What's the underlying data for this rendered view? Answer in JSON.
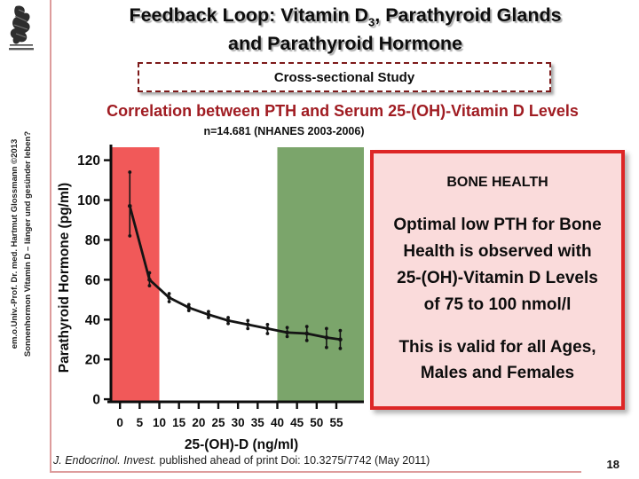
{
  "slide": {
    "page_number": "18",
    "sidebar_line1": "em.o.Univ.-Prof. Dr. med. Hartmut Glossmann ©2013",
    "sidebar_line2": "Sonnenhormon Vitamin D – länger und gesünder leben?",
    "logo_icon": "engraving-crest-logo"
  },
  "header": {
    "title_line1_pre": "Feedback Loop: Vitamin D",
    "title_subscript": "3",
    "title_line1_post": ", Parathyroid Glands",
    "title_line2": "and Parathyroid Hormone",
    "study_box_label": "Cross-sectional Study"
  },
  "section": {
    "heading": "Correlation between PTH and Serum 25-(OH)-Vitamin D Levels",
    "subheading": "n=14.681 (NHANES 2003-2006)"
  },
  "chart_data": {
    "type": "line",
    "title": "",
    "xlabel": "25-(OH)-D (ng/ml)",
    "ylabel": "Parathyroid Hormone (pg/ml)",
    "xlim": [
      -2.3,
      62
    ],
    "ylim": [
      -1.3,
      126.5
    ],
    "x_ticks": [
      0,
      5,
      10,
      15,
      20,
      25,
      30,
      35,
      40,
      45,
      50,
      55
    ],
    "y_ticks": [
      0,
      20,
      40,
      60,
      80,
      100,
      120
    ],
    "grid": false,
    "legend": null,
    "series": [
      {
        "name": "mean PTH with error bars",
        "x": [
          2.5,
          7.5,
          12.5,
          17.5,
          22.5,
          27.5,
          32.5,
          37.5,
          42.5,
          47.5,
          52.5,
          56
        ],
        "y": [
          97,
          60,
          51,
          46,
          42.5,
          39.5,
          37.5,
          35.5,
          33.5,
          33,
          31,
          30
        ],
        "err_low": [
          82,
          57,
          49,
          44.5,
          41,
          38,
          35.5,
          33,
          31.5,
          29.5,
          26,
          25.5
        ],
        "err_high": [
          114,
          63.5,
          53,
          47.5,
          44,
          41,
          39.5,
          37.5,
          36,
          36.5,
          35.5,
          34.5
        ]
      }
    ],
    "bands": [
      {
        "name": "red-highlight-band",
        "x0": -2.3,
        "x1": 10,
        "color": "#f15959"
      },
      {
        "name": "green-highlight-band",
        "x0": 40,
        "x1": 62,
        "color": "#7ba56b"
      }
    ],
    "line_color": "#141414",
    "axis_color": "#0d0d0d"
  },
  "info_box": {
    "title": "BONE HEALTH",
    "body_lines": [
      "Optimal low PTH for Bone",
      "Health is observed with",
      "25-(OH)-Vitamin D Levels",
      "of 75 to 100 nmol/l"
    ],
    "footer_lines": [
      "This is valid for all Ages,",
      "Males and Females"
    ]
  },
  "footer": {
    "citation_italic": "J. Endocrinol. Invest.",
    "citation_rest": " published ahead of print Doi: 10.3275/7742 (May 2011)"
  },
  "colors": {
    "heading_red": "#a01c22",
    "rule_pink": "#dd9c9c",
    "box_border_red": "#dd2626",
    "box_bg_pink": "#fadbdb",
    "dashed_border_maroon": "#7d1a1a"
  }
}
